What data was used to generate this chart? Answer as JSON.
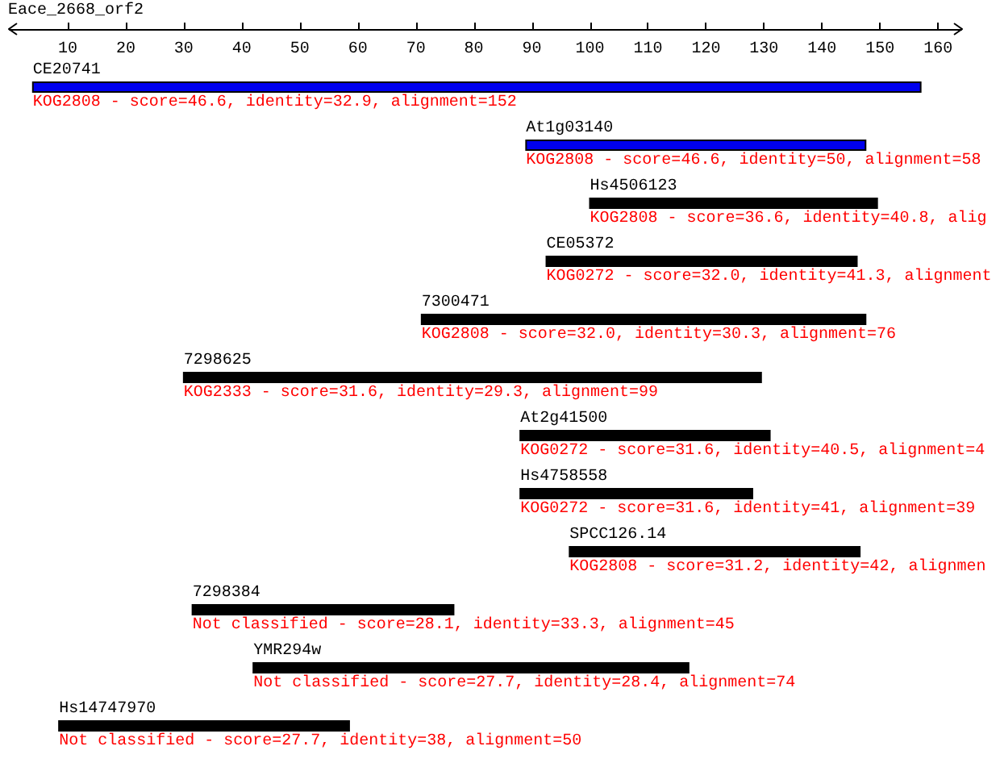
{
  "chart_data": {
    "type": "bar",
    "orientation": "horizontal",
    "xlabel": "Eace_2668_orf2",
    "categories": [
      "CE20741",
      "At1g03140",
      "Hs4506123",
      "CE05372",
      "7300471",
      "7298625",
      "At2g41500",
      "Hs4758558",
      "SPCC126.14",
      "7298384",
      "YMR294w",
      "Hs14747970"
    ],
    "base": [
      4,
      89,
      100,
      92.5,
      71,
      30,
      88,
      88,
      96.5,
      31.5,
      42,
      8.5
    ],
    "values": [
      153,
      58.5,
      49.5,
      53.5,
      76.5,
      99.5,
      43,
      40,
      50,
      45,
      75,
      50
    ],
    "colors": [
      "#0000ee",
      "#0000ee",
      "#000000",
      "#000000",
      "#000000",
      "#000000",
      "#000000",
      "#000000",
      "#000000",
      "#000000",
      "#000000",
      "#000000"
    ],
    "xlim": [
      0,
      164
    ],
    "xticks": [
      10,
      20,
      30,
      40,
      50,
      60,
      70,
      80,
      90,
      100,
      110,
      120,
      130,
      140,
      150,
      160
    ],
    "annotations": [
      "KOG2808 - score=46.6, identity=32.9, alignment=152",
      "KOG2808 - score=46.6, identity=50, alignment=58",
      "KOG2808 - score=36.6, identity=40.8, alig",
      "KOG0272 - score=32.0, identity=41.3, alignment",
      "KOG2808 - score=32.0, identity=30.3, alignment=76",
      "KOG2333 - score=31.6, identity=29.3, alignment=99",
      "KOG0272 - score=31.6, identity=40.5, alignment=4",
      "KOG0272 - score=31.6, identity=41, alignment=39",
      "KOG2808 - score=31.2, identity=42, alignmen",
      "Not classified - score=28.1, identity=33.3, alignment=45",
      "Not classified - score=27.7, identity=28.4, alignment=74",
      "Not classified - score=27.7, identity=38, alignment=50"
    ]
  }
}
